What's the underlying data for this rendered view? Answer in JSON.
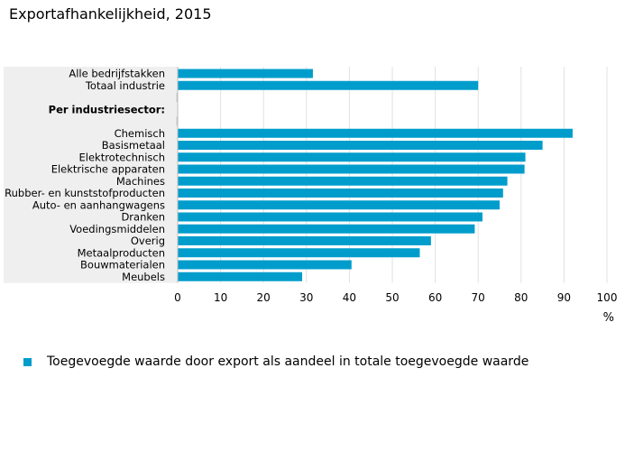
{
  "page_title": "Exportafhankelijkheid, 2015",
  "colors": {
    "bar": "#009dcc",
    "label_background": "#efefef",
    "grid": "#e1e1e1"
  },
  "chart_data": {
    "type": "bar",
    "orientation": "horizontal",
    "categories": [
      "Alle bedrijfstakken",
      "Totaal industrie",
      "",
      "Per industriesector:",
      "",
      "Chemisch",
      "Basismetaal",
      "Elektrotechnisch",
      "Elektrische apparaten",
      "Machines",
      "Rubber- en kunststofproducten",
      "Auto- en aanhangwagens",
      "Dranken",
      "Voedingsmiddelen",
      "Overig",
      "Metaalproducten",
      "Bouwmaterialen",
      "Meubels"
    ],
    "bold_categories": [
      "Per industriesector:"
    ],
    "series": [
      {
        "name": "Toegevoegde waarde door export als aandeel in totale toegevoegde waarde",
        "values": [
          31.5,
          70.0,
          null,
          null,
          null,
          92.0,
          85.0,
          81.0,
          80.8,
          76.8,
          75.8,
          75.0,
          71.0,
          69.2,
          59.0,
          56.4,
          40.5,
          29.0
        ]
      }
    ],
    "x_ticks": [
      0,
      10,
      20,
      30,
      40,
      50,
      60,
      70,
      80,
      90,
      100
    ],
    "xlim": [
      0,
      100
    ],
    "xlabel": "%",
    "grid": true,
    "legend_position": "bottom"
  }
}
